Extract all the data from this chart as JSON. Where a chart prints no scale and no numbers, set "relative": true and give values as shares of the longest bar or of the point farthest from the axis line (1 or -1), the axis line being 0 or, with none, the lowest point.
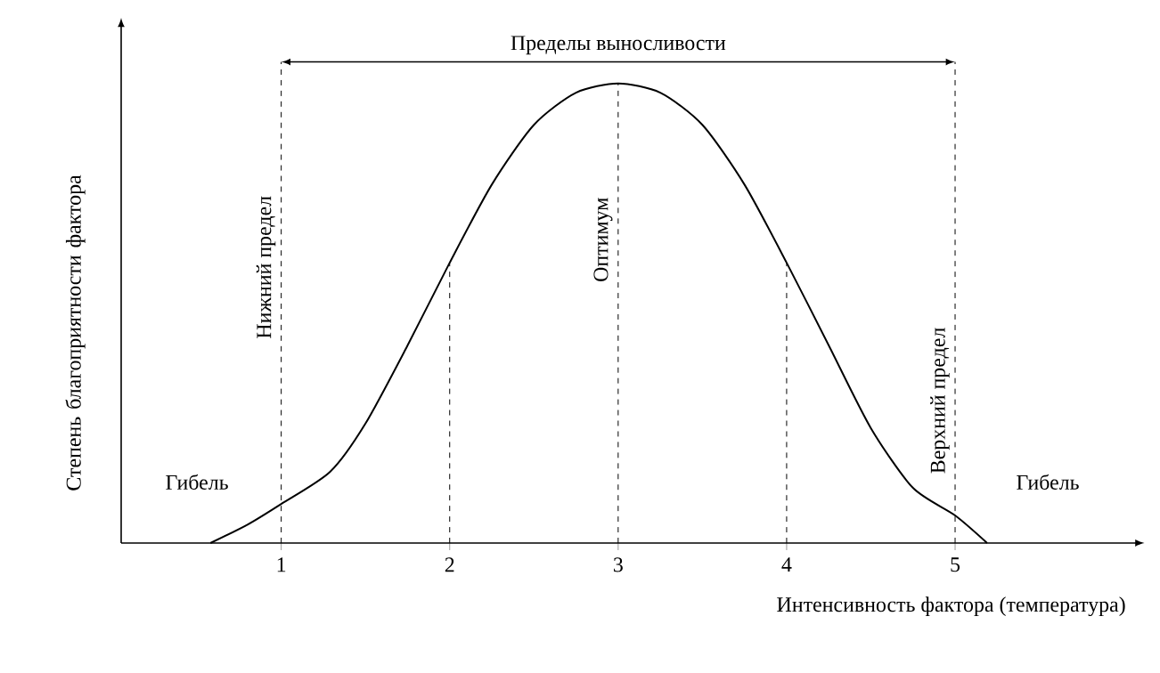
{
  "chart_data": {
    "type": "line",
    "relative": true,
    "xlabel": "Интенсивность фактора (температура)",
    "ylabel": "Степень благоприятности фактора",
    "x": [
      0.58,
      0.8,
      1,
      1.29,
      1.5,
      1.75,
      2,
      2.25,
      2.5,
      2.75,
      3,
      3.25,
      3.5,
      3.75,
      4,
      4.25,
      4.5,
      4.75,
      5,
      5.19
    ],
    "values": [
      0,
      0.04,
      0.085,
      0.155,
      0.26,
      0.43,
      0.61,
      0.78,
      0.91,
      0.98,
      1,
      0.98,
      0.91,
      0.78,
      0.61,
      0.43,
      0.25,
      0.12,
      0.06,
      0
    ],
    "color": "#000000",
    "xlim": [
      0.05,
      6.1
    ],
    "xticks": [
      1,
      2,
      3,
      4,
      5
    ],
    "tick_labels": "x",
    "ref_lines": [
      {
        "axis": "x",
        "value": 1,
        "label": "Нижний предел",
        "line_style": "dashed"
      },
      {
        "axis": "x",
        "value": 2,
        "line_style": "dashed"
      },
      {
        "axis": "x",
        "value": 3,
        "label": "Оптимум",
        "line_style": "dashed"
      },
      {
        "axis": "x",
        "value": 4,
        "line_style": "dashed"
      },
      {
        "axis": "x",
        "value": 5,
        "label": "Верхний предел",
        "line_style": "dashed"
      }
    ],
    "annotations": [
      "Пределы выносливости",
      "Гибель",
      "Гибель"
    ]
  }
}
